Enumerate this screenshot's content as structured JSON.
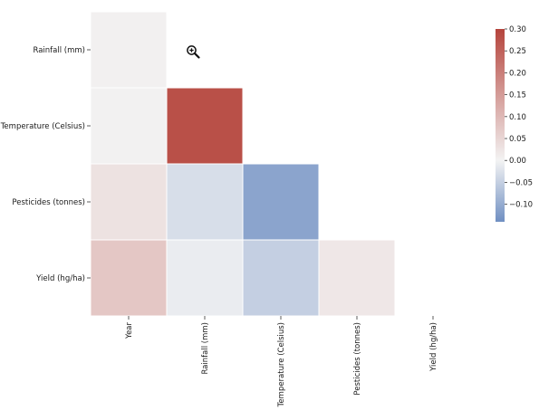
{
  "chart_data": {
    "type": "heatmap",
    "title": "",
    "xlabel": "",
    "ylabel": "",
    "x_categories": [
      "Year",
      "Rainfall (mm)",
      "Temperature (Celsius)",
      "Pesticides (tonnes)",
      "Yield (hg/ha)"
    ],
    "y_categories": [
      "Rainfall (mm)",
      "Temperature (Celsius)",
      "Pesticides (tonnes)",
      "Yield (hg/ha)"
    ],
    "mask": "upper-triangle",
    "values": [
      [
        0.005,
        null,
        null,
        null,
        null
      ],
      [
        0.004,
        0.28,
        null,
        null,
        null
      ],
      [
        0.03,
        -0.03,
        -0.11,
        null,
        null
      ],
      [
        0.075,
        -0.01,
        -0.05,
        0.02,
        null
      ]
    ],
    "colorbar": {
      "range": [
        -0.14,
        0.3
      ],
      "ticks": [
        0.3,
        0.25,
        0.2,
        0.15,
        0.1,
        0.05,
        0.0,
        -0.05,
        -0.1
      ],
      "tick_labels": [
        "0.30",
        "0.25",
        "0.20",
        "0.15",
        "0.10",
        "0.05",
        "0.00",
        "−0.05",
        "−0.10"
      ],
      "colormap": "diverging blue-white-red",
      "colors": {
        "low": "#6f8fc2",
        "mid": "#f3f3f3",
        "high": "#b5443c"
      }
    },
    "cursor_icon": "zoom-in-icon"
  }
}
